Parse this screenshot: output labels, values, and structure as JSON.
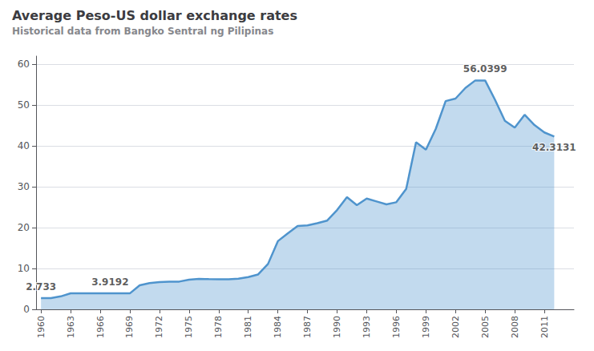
{
  "chart_data": {
    "type": "line",
    "title": "Average Peso-US dollar exchange rates",
    "subtitle": "Historical data from Bangko Sentral ng Pilipinas",
    "x": [
      1960,
      1961,
      1962,
      1963,
      1964,
      1965,
      1966,
      1967,
      1968,
      1969,
      1970,
      1971,
      1972,
      1973,
      1974,
      1975,
      1976,
      1977,
      1978,
      1979,
      1980,
      1981,
      1982,
      1983,
      1984,
      1985,
      1986,
      1987,
      1988,
      1989,
      1990,
      1991,
      1992,
      1993,
      1994,
      1995,
      1996,
      1997,
      1998,
      1999,
      2000,
      2001,
      2002,
      2003,
      2004,
      2005,
      2006,
      2007,
      2008,
      2009,
      2010,
      2011,
      2012
    ],
    "values": [
      2.733,
      2.733,
      3.17,
      3.9192,
      3.9,
      3.9,
      3.9,
      3.9,
      3.9,
      3.9,
      5.9,
      6.43,
      6.67,
      6.76,
      6.79,
      7.25,
      7.44,
      7.4,
      7.37,
      7.38,
      7.51,
      7.9,
      8.54,
      11.11,
      16.7,
      18.61,
      20.39,
      20.57,
      21.09,
      21.74,
      24.31,
      27.48,
      25.51,
      27.12,
      26.42,
      25.71,
      26.22,
      29.47,
      40.89,
      39.09,
      44.19,
      50.99,
      51.6,
      54.2,
      56.04,
      56.0399,
      51.31,
      46.15,
      44.48,
      47.64,
      45.11,
      43.31,
      42.3131
    ],
    "color": "#4F94CD",
    "xlim": [
      1959.5,
      2014
    ],
    "xticks": [
      1960,
      1963,
      1966,
      1969,
      1972,
      1975,
      1978,
      1981,
      1984,
      1987,
      1990,
      1993,
      1996,
      1999,
      2002,
      2005,
      2008,
      2011
    ],
    "ylim": [
      0,
      62
    ],
    "yticks": [
      0,
      10,
      20,
      30,
      40,
      50,
      60
    ],
    "grid": true,
    "annotations": [
      {
        "text": "2.733",
        "x": 1960,
        "y": 2.733
      },
      {
        "text": "3.9192",
        "x": 1967,
        "y": 3.9192
      },
      {
        "text": "56.0399",
        "x": 2005,
        "y": 56.0399
      },
      {
        "text": "42.3131",
        "x": 2012,
        "y": 42.3131
      }
    ]
  }
}
